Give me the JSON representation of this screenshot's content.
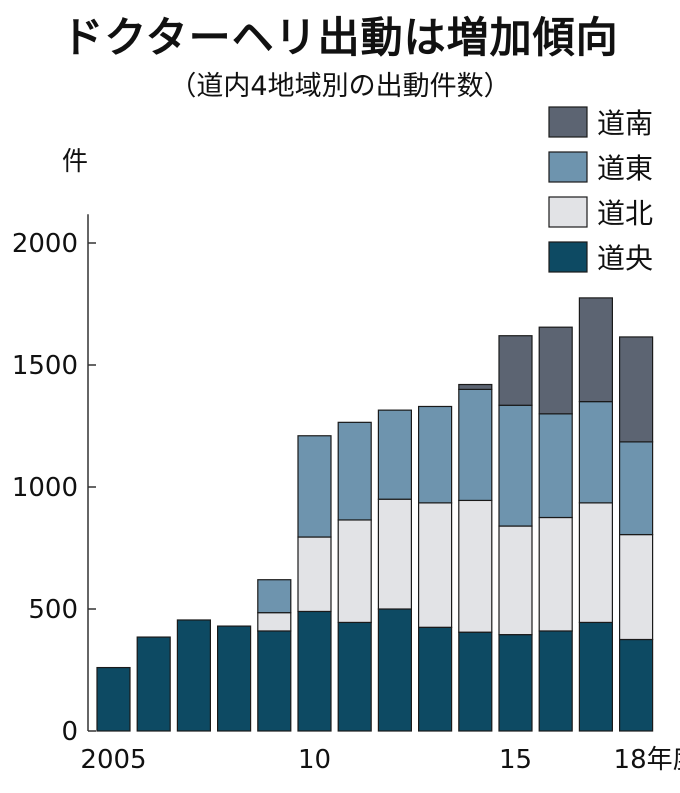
{
  "chart_data": {
    "type": "bar",
    "stacked": true,
    "title": "ドクターヘリ出動は増加傾向",
    "subtitle": "（道内4地域別の出動件数）",
    "ylabel": "件",
    "ylim": [
      0,
      2200
    ],
    "yticks": [
      0,
      500,
      1000,
      1500,
      2000
    ],
    "categories": [
      "2005",
      "2006",
      "2007",
      "2008",
      "2009",
      "2010",
      "2011",
      "2012",
      "2013",
      "2014",
      "2015",
      "2016",
      "2017",
      "2018"
    ],
    "xtick_labels": [
      {
        "index": 0,
        "label": "2005"
      },
      {
        "index": 5,
        "label": "10"
      },
      {
        "index": 10,
        "label": "15"
      },
      {
        "index": 13,
        "label": "18年度"
      }
    ],
    "legend_position": "top-right",
    "grid": false,
    "series": [
      {
        "name": "道央",
        "color": "#0d4a63",
        "values": [
          260,
          385,
          455,
          430,
          410,
          490,
          445,
          500,
          425,
          405,
          395,
          410,
          445,
          375
        ]
      },
      {
        "name": "道北",
        "color": "#e2e3e6",
        "values": [
          0,
          0,
          0,
          0,
          75,
          305,
          420,
          450,
          510,
          540,
          445,
          465,
          490,
          430
        ]
      },
      {
        "name": "道東",
        "color": "#6e94ae",
        "values": [
          0,
          0,
          0,
          0,
          135,
          415,
          400,
          365,
          395,
          455,
          495,
          425,
          415,
          380
        ]
      },
      {
        "name": "道南",
        "color": "#5c6472",
        "values": [
          0,
          0,
          0,
          0,
          0,
          0,
          0,
          0,
          0,
          20,
          285,
          355,
          425,
          430
        ]
      }
    ],
    "legend_order": [
      "道南",
      "道東",
      "道北",
      "道央"
    ]
  }
}
